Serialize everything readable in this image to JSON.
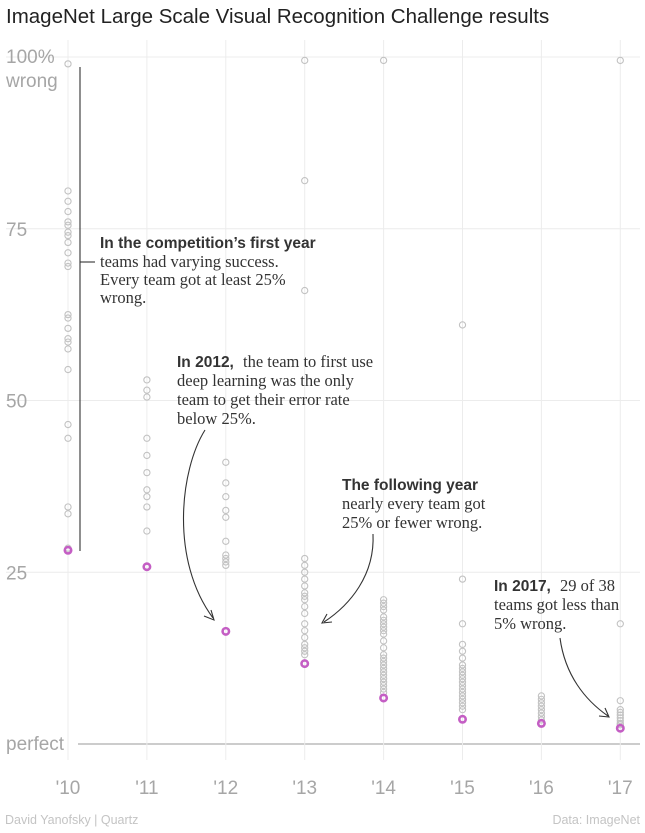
{
  "chart_data": {
    "type": "scatter",
    "title": "ImageNet Large Scale Visual Recognition Challenge results",
    "categories": [
      "'10",
      "'11",
      "'12",
      "'13",
      "'14",
      "'15",
      "'16",
      "'17"
    ],
    "y_ticks": [
      {
        "value": 100,
        "label": "100%",
        "label2": "wrong"
      },
      {
        "value": 75,
        "label": "75"
      },
      {
        "value": 50,
        "label": "50"
      },
      {
        "value": 25,
        "label": "25"
      },
      {
        "value": 0,
        "label": "perfect"
      }
    ],
    "ylim": [
      0,
      100
    ],
    "grid": true,
    "series": [
      {
        "role": "teams",
        "values": [
          [
            99.0,
            80.5,
            79.0,
            77.5,
            76.0,
            75.5,
            74.5,
            74.0,
            73.0,
            71.5,
            70.0,
            69.5,
            62.5,
            62.0,
            60.5,
            59.0,
            58.5,
            57.5,
            54.5,
            46.5,
            44.5,
            34.5,
            33.5,
            28.5
          ],
          [
            53.0,
            51.5,
            50.5,
            44.5,
            42.0,
            39.5,
            37.0,
            36.0,
            34.5,
            31.0
          ],
          [
            41.0,
            38.0,
            36.0,
            34.0,
            33.0,
            29.5,
            27.5,
            27.0,
            26.5,
            26.0
          ],
          [
            99.5,
            82.0,
            66.0,
            27.0,
            26.0,
            25.0,
            24.0,
            23.0,
            22.0,
            21.5,
            21.0,
            20.0,
            19.0,
            17.5,
            16.5,
            15.5,
            14.5,
            14.0,
            13.5,
            13.0
          ],
          [
            99.5,
            21.0,
            20.5,
            20.0,
            19.5,
            18.5,
            18.0,
            17.5,
            17.0,
            16.5,
            16.0,
            15.0,
            14.0,
            13.0,
            12.5,
            12.0,
            11.5,
            11.0,
            10.5,
            10.0,
            9.5,
            9.0,
            8.5,
            8.0,
            7.5
          ],
          [
            61.0,
            24.0,
            17.5,
            14.5,
            13.5,
            12.5,
            11.5,
            11.0,
            10.5,
            10.0,
            9.5,
            9.0,
            8.5,
            8.0,
            7.5,
            7.0,
            6.5,
            6.0,
            5.5,
            5.0
          ],
          [
            7.0,
            6.5,
            6.0,
            5.5,
            5.0,
            4.5,
            4.0,
            3.5
          ],
          [
            99.5,
            17.5,
            6.3,
            5.0,
            4.6,
            4.2,
            3.8,
            3.4,
            3.0,
            2.8
          ]
        ]
      },
      {
        "role": "winner",
        "color": "#c45ec4",
        "values": [
          28.2,
          25.8,
          16.4,
          11.7,
          6.7,
          3.6,
          3.0,
          2.3
        ]
      }
    ],
    "annotations": [
      {
        "bold": "In the competition’s first year",
        "lines": [
          "teams had varying success.",
          "Every team got at least 25%",
          "wrong."
        ]
      },
      {
        "bold": "In 2012,",
        "lines": [
          "the team to first use",
          "deep learning was the only",
          "team to get their error rate",
          "below 25%."
        ]
      },
      {
        "bold": "The following year",
        "lines": [
          "nearly every team got",
          "25% or fewer wrong."
        ]
      },
      {
        "bold": "In 2017,",
        "lines": [
          "29 of 38",
          "teams got less than",
          "5% wrong."
        ]
      }
    ]
  },
  "footer": {
    "credit": "David Yanofsky | Quartz",
    "source": "Data: ImageNet"
  }
}
